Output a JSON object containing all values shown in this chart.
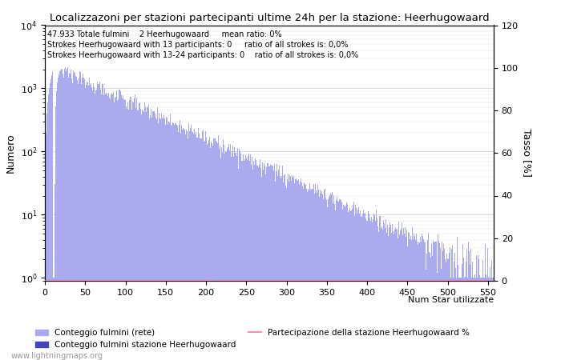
{
  "title": "Localizzazoni per stazioni partecipanti ultime 24h per la stazione: Heerhugowaard",
  "xlabel": "Num Star utilizzate",
  "ylabel_left": "Numero",
  "ylabel_right": "Tasso [%]",
  "annotation_lines": [
    "47.933 Totale fulmini    2 Heerhugowaard     mean ratio: 0%",
    "Strokes Heerhugowaard with 13 participants: 0     ratio of all strokes is: 0,0%",
    "Strokes Heerhugowaard with 13-24 participants: 0    ratio of all strokes is: 0,0%"
  ],
  "xmin": 0,
  "xmax": 557,
  "ymin": 0.9,
  "ymax": 10000.0,
  "y2min": 0,
  "y2max": 120,
  "y2ticks": [
    0,
    20,
    40,
    60,
    80,
    100,
    120
  ],
  "bar_color_light": "#aaaaee",
  "bar_color_dark": "#4444bb",
  "line_color": "#ff88bb",
  "legend_labels": [
    "Conteggio fulmini (rete)",
    "Conteggio fulmini stazione Heerhugowaard",
    "Partecipazione della stazione Heerhugowaard %"
  ],
  "watermark": "www.lightningmaps.org",
  "num_bars": 557
}
